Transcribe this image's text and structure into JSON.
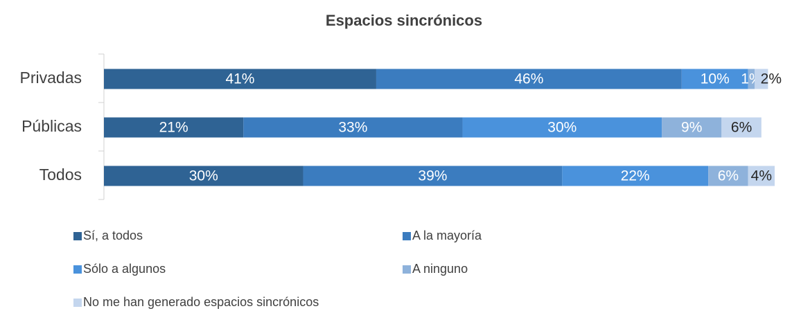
{
  "chart_data": {
    "type": "bar",
    "orientation": "horizontal",
    "stacked": true,
    "title": "Espacios sincrónicos",
    "categories": [
      "Privadas",
      "Públicas",
      "Todos"
    ],
    "series": [
      {
        "name": "Sí, a todos",
        "color": "#2f6394",
        "values": [
          41,
          21,
          30
        ],
        "value_labels": [
          "41%",
          "21%",
          "30%"
        ]
      },
      {
        "name": "A la mayoría",
        "color": "#3b7cbf",
        "values": [
          46,
          33,
          39
        ],
        "value_labels": [
          "46%",
          "33%",
          "39%"
        ]
      },
      {
        "name": "Sólo a algunos",
        "color": "#4a92dc",
        "values": [
          10,
          30,
          22
        ],
        "value_labels": [
          "10%",
          "30%",
          "22%"
        ]
      },
      {
        "name": "A ninguno",
        "color": "#8eb2db",
        "values": [
          1,
          9,
          6
        ],
        "value_labels": [
          "1%",
          "9%",
          "6%"
        ]
      },
      {
        "name": "No me han generado espacios sincrónicos",
        "color": "#c4d6ee",
        "values": [
          2,
          6,
          4
        ],
        "value_labels": [
          "2%",
          "6%",
          "4%"
        ]
      }
    ]
  }
}
